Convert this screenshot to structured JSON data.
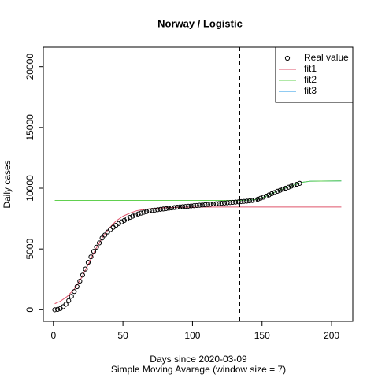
{
  "chart_data": {
    "type": "line",
    "title": "Norway / Logistic",
    "x_label": "Days since 2020-03-09",
    "subtitle": "Simple Moving Avarage (window size = 7)",
    "y_label": "Daily cases",
    "xlim": [
      -7.24,
      215.24
    ],
    "ylim": [
      -950,
      21600
    ],
    "xticks": [
      0,
      50,
      100,
      150,
      200
    ],
    "yticks": [
      0,
      5000,
      10000,
      15000,
      20000
    ],
    "vline": 134,
    "legend": "topright",
    "series": [
      {
        "name": "Real value",
        "color": "#000000",
        "style": "points",
        "x": [
          1,
          3,
          5,
          7,
          9,
          11,
          13,
          15,
          17,
          19,
          21,
          23,
          25,
          27,
          29,
          31,
          33,
          35,
          37,
          39,
          41,
          43,
          45,
          47,
          49,
          51,
          53,
          55,
          57,
          59,
          61,
          63,
          65,
          67,
          69,
          71,
          73,
          75,
          77,
          79,
          81,
          83,
          85,
          87,
          89,
          91,
          93,
          95,
          97,
          99,
          101,
          103,
          105,
          107,
          109,
          111,
          113,
          115,
          117,
          119,
          121,
          123,
          125,
          127,
          129,
          131,
          133,
          135,
          137,
          139,
          141,
          143,
          145,
          147,
          149,
          151,
          153,
          155,
          157,
          159,
          161,
          163,
          165,
          167,
          169,
          171,
          173,
          175,
          177
        ],
        "values": [
          0,
          30,
          100,
          250,
          450,
          750,
          1100,
          1500,
          1900,
          2350,
          2850,
          3350,
          3900,
          4350,
          4800,
          5150,
          5500,
          5900,
          6150,
          6400,
          6600,
          6780,
          6950,
          7100,
          7230,
          7350,
          7480,
          7600,
          7700,
          7800,
          7880,
          7950,
          8020,
          8080,
          8130,
          8170,
          8200,
          8230,
          8260,
          8290,
          8320,
          8350,
          8380,
          8410,
          8440,
          8460,
          8480,
          8500,
          8520,
          8540,
          8560,
          8580,
          8600,
          8620,
          8640,
          8660,
          8680,
          8700,
          8720,
          8740,
          8760,
          8780,
          8800,
          8820,
          8840,
          8860,
          8880,
          8900,
          8920,
          8940,
          8960,
          8990,
          9030,
          9100,
          9180,
          9260,
          9350,
          9450,
          9550,
          9650,
          9750,
          9830,
          9920,
          10000,
          10080,
          10170,
          10250,
          10320,
          10400
        ]
      },
      {
        "name": "fit1",
        "color": "#DF536B",
        "style": "line",
        "x": [
          1,
          5,
          10,
          15,
          20,
          25,
          30,
          35,
          40,
          45,
          50,
          55,
          60,
          65,
          70,
          80,
          90,
          100,
          120,
          140,
          160,
          180,
          207
        ],
        "values": [
          500,
          700,
          1100,
          1700,
          2600,
          3700,
          4900,
          5900,
          6700,
          7300,
          7700,
          7950,
          8150,
          8250,
          8320,
          8400,
          8430,
          8440,
          8450,
          8450,
          8450,
          8450,
          8450
        ]
      },
      {
        "name": "fit2",
        "color": "#61D04F",
        "style": "line",
        "x": [
          1,
          134,
          140,
          145,
          150,
          155,
          160,
          165,
          170,
          175,
          180,
          185,
          207
        ],
        "values": [
          9000,
          9000,
          9020,
          9060,
          9200,
          9450,
          9720,
          9950,
          10150,
          10350,
          10500,
          10580,
          10600
        ]
      },
      {
        "name": "fit3",
        "color": "#2297E6",
        "style": "line",
        "x": [
          134,
          140,
          145,
          150,
          155,
          160,
          165,
          170,
          175,
          180,
          185,
          207
        ],
        "values": [
          9000,
          9020,
          9060,
          9200,
          9450,
          9720,
          9950,
          10150,
          10350,
          10500,
          10580,
          10600
        ]
      }
    ]
  }
}
